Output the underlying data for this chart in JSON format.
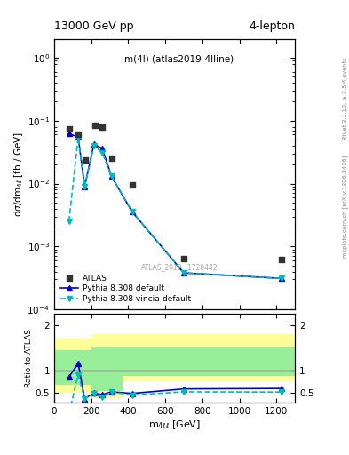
{
  "title_top": "13000 GeV pp",
  "title_right": "4-lepton",
  "annotation": "m(4l) (atlas2019-4lline)",
  "watermark": "ATLAS_2019_I1720442",
  "right_label_top": "Rivet 3.1.10, ≥ 3.5M events",
  "right_label_bottom": "mcplots.cern.ch [arXiv:1306.3436]",
  "ylabel_main": "dσ/dm_{4ℓ} [fb / GeV]",
  "ylabel_ratio": "Ratio to ATLAS",
  "xlabel": "m_{4ℓℓ} [GeV]",
  "data_atlas_x": [
    80,
    130,
    170,
    220,
    260,
    310,
    420,
    700,
    1230
  ],
  "data_atlas_y": [
    0.073,
    0.06,
    0.024,
    0.085,
    0.078,
    0.025,
    0.0095,
    0.00065,
    0.00062
  ],
  "pythia_default_x": [
    80,
    130,
    165,
    215,
    260,
    310,
    420,
    700,
    1230
  ],
  "pythia_default_y": [
    0.062,
    0.055,
    0.009,
    0.042,
    0.036,
    0.013,
    0.0036,
    0.00038,
    0.00031
  ],
  "pythia_vincia_x": [
    80,
    130,
    165,
    215,
    260,
    310,
    420,
    700,
    1230
  ],
  "pythia_vincia_y": [
    0.0025,
    0.054,
    0.009,
    0.04,
    0.031,
    0.013,
    0.0036,
    0.00038,
    0.00031
  ],
  "ratio_default_x": [
    80,
    130,
    165,
    215,
    260,
    310,
    420,
    700,
    1230
  ],
  "ratio_default_y": [
    0.85,
    1.15,
    0.37,
    0.49,
    0.46,
    0.52,
    0.485,
    0.585,
    0.595
  ],
  "ratio_vincia_x": [
    80,
    130,
    165,
    215,
    260,
    310,
    420,
    700,
    1230
  ],
  "ratio_vincia_y": [
    0.034,
    0.9,
    0.37,
    0.47,
    0.4,
    0.52,
    0.45,
    0.52,
    0.515
  ],
  "yellow_edges": [
    0,
    110,
    200,
    370,
    490,
    1300
  ],
  "yellow_low": [
    0.5,
    0.5,
    0.38,
    0.75,
    0.75,
    0.75
  ],
  "yellow_high": [
    1.7,
    1.7,
    1.8,
    1.8,
    1.8,
    1.8
  ],
  "green_edges": [
    0,
    110,
    200,
    370,
    490,
    1300
  ],
  "green_low": [
    0.68,
    0.68,
    0.53,
    0.88,
    0.88,
    0.88
  ],
  "green_high": [
    1.45,
    1.45,
    1.52,
    1.52,
    1.52,
    1.52
  ],
  "color_atlas": "#333333",
  "color_pythia_default": "#0000cc",
  "color_pythia_vincia": "#00bbbb",
  "color_yellow": "#ffff99",
  "color_green": "#99ee99",
  "xlim": [
    0,
    1300
  ],
  "ylim_main": [
    0.0001,
    2.0
  ],
  "ylim_ratio": [
    0.28,
    2.25
  ]
}
